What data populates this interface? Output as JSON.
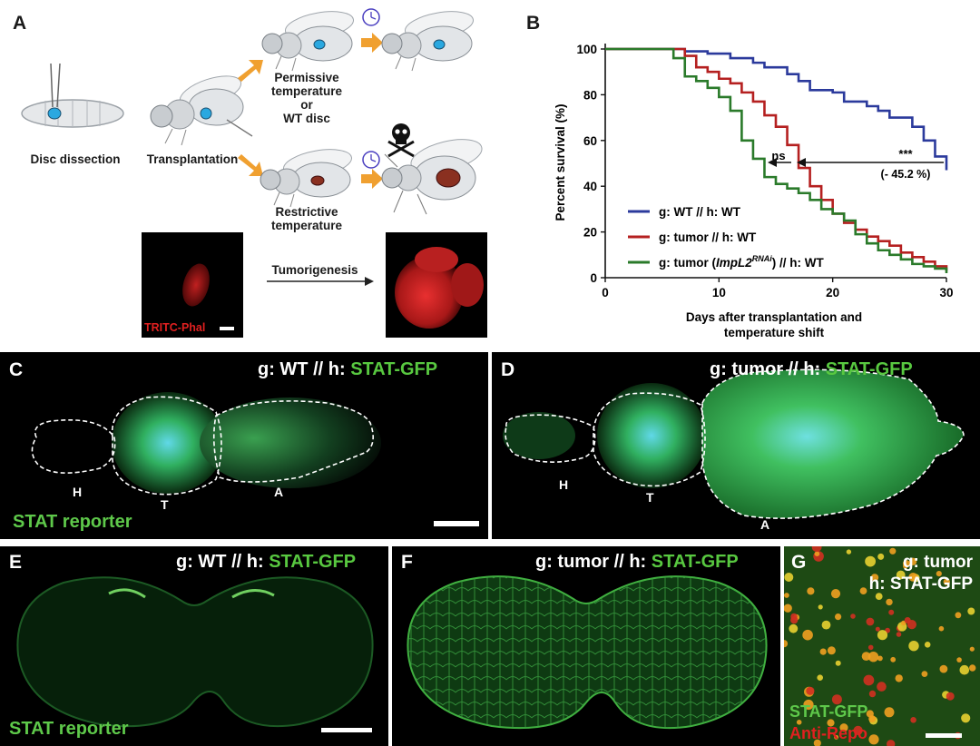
{
  "panel_labels": {
    "a": "A",
    "b": "B",
    "c": "C",
    "d": "D",
    "e": "E",
    "f": "F",
    "g": "G"
  },
  "panel_a": {
    "disc_dissection": "Disc dissection",
    "transplantation": "Transplantation",
    "permissive_line1": "Permissive",
    "permissive_line2": "temperature",
    "permissive_line3": "or",
    "permissive_line4": "WT disc",
    "restrictive_line1": "Restrictive",
    "restrictive_line2": "temperature",
    "tumorigenesis": "Tumorigenesis",
    "stain_label": "TRITC-Phal"
  },
  "panel_c": {
    "title_prefix": "g: WT // h: ",
    "title_marker": "STAT-GFP",
    "reporter": "STAT reporter",
    "region_h": "H",
    "region_t": "T",
    "region_a": "A"
  },
  "panel_d": {
    "title_prefix": "g: tumor // h: ",
    "title_marker": "STAT-GFP",
    "region_h": "H",
    "region_t": "T",
    "region_a": "A"
  },
  "panel_e": {
    "title_prefix": "g: WT // h: ",
    "title_marker": "STAT-GFP",
    "reporter": "STAT reporter"
  },
  "panel_f": {
    "title_prefix": "g: tumor // h: ",
    "title_marker": "STAT-GFP"
  },
  "panel_g": {
    "line1": "g: tumor",
    "line2": "h: STAT-GFP",
    "green_label": "STAT-GFP",
    "red_label": "Anti-Repo"
  },
  "chart_data": {
    "type": "line",
    "xlabel_line1": "Days after transplantation and",
    "xlabel_line2": "temperature shift",
    "ylabel": "Percent survival (%)",
    "xlim": [
      0,
      30
    ],
    "ylim": [
      0,
      100
    ],
    "xticks": [
      0,
      10,
      20,
      30
    ],
    "yticks": [
      0,
      20,
      40,
      60,
      80,
      100
    ],
    "step": true,
    "legend_position": "bottom-left",
    "annotations": {
      "significance": "***",
      "change": "(- 45.2 %)",
      "ns": "ns"
    },
    "colors": {
      "wt": "#2b3a9c",
      "tumor": "#b52020",
      "impl2": "#2a7a2a"
    },
    "legend": {
      "wt": "g: WT // h: WT",
      "tumor": "g: tumor // h: WT",
      "impl2_pre": "g: tumor (",
      "impl2_gene": "ImpL2",
      "impl2_sup": "RNAi",
      "impl2_post": ") // h: WT"
    },
    "series": [
      {
        "key": "wt",
        "x": [
          2,
          7,
          9,
          11,
          13,
          14,
          16,
          17,
          18,
          20,
          21,
          23,
          24,
          25,
          27,
          28,
          29,
          30
        ],
        "y": [
          100,
          99,
          98,
          96,
          94,
          92,
          89,
          86,
          82,
          81,
          77,
          75,
          73,
          70,
          66,
          60,
          53,
          47
        ]
      },
      {
        "key": "tumor",
        "x": [
          2,
          7,
          8,
          9,
          10,
          11,
          12,
          13,
          14,
          15,
          16,
          17,
          18,
          19,
          20,
          21,
          22,
          23,
          24,
          25,
          26,
          27,
          28,
          29,
          30
        ],
        "y": [
          100,
          97,
          92,
          90,
          87,
          85,
          81,
          77,
          71,
          66,
          58,
          48,
          40,
          34,
          28,
          24,
          21,
          18,
          16,
          14,
          11,
          9,
          7,
          5,
          3
        ]
      },
      {
        "key": "impl2",
        "x": [
          2,
          6,
          7,
          8,
          9,
          10,
          11,
          12,
          13,
          14,
          15,
          16,
          17,
          18,
          19,
          20,
          21,
          22,
          23,
          24,
          25,
          26,
          27,
          28,
          29,
          30
        ],
        "y": [
          100,
          96,
          88,
          86,
          83,
          79,
          73,
          60,
          52,
          44,
          41,
          39,
          37,
          34,
          30,
          28,
          25,
          19,
          15,
          12,
          10,
          8,
          6,
          5,
          4,
          2
        ]
      }
    ]
  }
}
